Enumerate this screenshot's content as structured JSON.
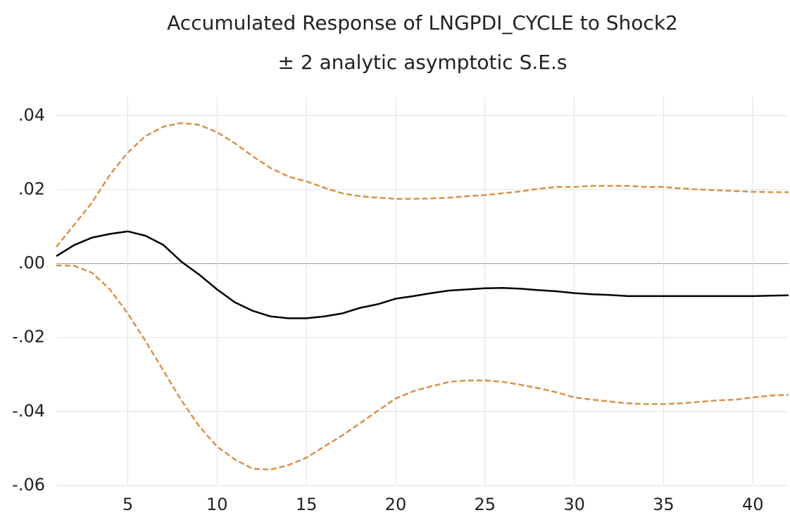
{
  "chart_data": {
    "type": "line",
    "title": "Accumulated Response of LNGPDI_CYCLE to Shock2",
    "subtitle": "± 2 analytic asymptotic S.E.s",
    "x": [
      1,
      2,
      3,
      4,
      5,
      6,
      7,
      8,
      9,
      10,
      11,
      12,
      13,
      14,
      15,
      16,
      17,
      18,
      19,
      20,
      21,
      22,
      23,
      24,
      25,
      26,
      27,
      28,
      29,
      30,
      31,
      32,
      33,
      34,
      35,
      36,
      37,
      38,
      39,
      40,
      41,
      42
    ],
    "series": [
      {
        "color": "#000000",
        "dashed": false,
        "values": [
          0.002,
          0.005,
          0.007,
          0.008,
          0.0087,
          0.0075,
          0.005,
          0.0005,
          -0.003,
          -0.007,
          -0.0105,
          -0.0128,
          -0.0143,
          -0.0148,
          -0.0148,
          -0.0143,
          -0.0135,
          -0.012,
          -0.011,
          -0.0095,
          -0.0088,
          -0.008,
          -0.0073,
          -0.007,
          -0.0067,
          -0.0066,
          -0.0068,
          -0.0072,
          -0.0075,
          -0.008,
          -0.0083,
          -0.0085,
          -0.0088,
          -0.0088,
          -0.0088,
          -0.0088,
          -0.0088,
          -0.0088,
          -0.0088,
          -0.0088,
          -0.0087,
          -0.0086
        ]
      },
      {
        "color": "#d9904a",
        "dashed": true,
        "values": [
          0.0045,
          0.0105,
          0.0165,
          0.024,
          0.03,
          0.0345,
          0.037,
          0.038,
          0.0375,
          0.0355,
          0.0325,
          0.029,
          0.0258,
          0.0235,
          0.0222,
          0.0205,
          0.019,
          0.0182,
          0.0178,
          0.0175,
          0.0175,
          0.0176,
          0.0178,
          0.0182,
          0.0185,
          0.019,
          0.0195,
          0.0202,
          0.0207,
          0.0207,
          0.021,
          0.021,
          0.021,
          0.0207,
          0.0207,
          0.0203,
          0.02,
          0.0198,
          0.0196,
          0.0194,
          0.0193,
          0.0193
        ]
      },
      {
        "color": "#d9904a",
        "dashed": true,
        "values": [
          -0.0005,
          -0.0006,
          -0.0025,
          -0.007,
          -0.0135,
          -0.021,
          -0.029,
          -0.037,
          -0.044,
          -0.0495,
          -0.053,
          -0.0555,
          -0.0557,
          -0.0545,
          -0.0525,
          -0.0495,
          -0.0465,
          -0.0432,
          -0.0398,
          -0.0365,
          -0.0345,
          -0.0332,
          -0.032,
          -0.0316,
          -0.0316,
          -0.032,
          -0.0328,
          -0.0337,
          -0.0348,
          -0.0362,
          -0.0368,
          -0.0373,
          -0.0378,
          -0.038,
          -0.038,
          -0.0378,
          -0.0374,
          -0.037,
          -0.0368,
          -0.0362,
          -0.0357,
          -0.0355
        ]
      }
    ],
    "xlim": [
      1,
      42
    ],
    "xticks": [
      5,
      10,
      15,
      20,
      25,
      30,
      35,
      40
    ],
    "ylim": [
      -0.06,
      0.045
    ],
    "yticks": [
      {
        "value": -0.06,
        "label": "-.06"
      },
      {
        "value": -0.04,
        "label": "-.04"
      },
      {
        "value": -0.02,
        "label": "-.02"
      },
      {
        "value": 0,
        "label": ".00"
      },
      {
        "value": 0.02,
        "label": ".02"
      },
      {
        "value": 0.04,
        "label": ".04"
      }
    ],
    "grid": true
  }
}
